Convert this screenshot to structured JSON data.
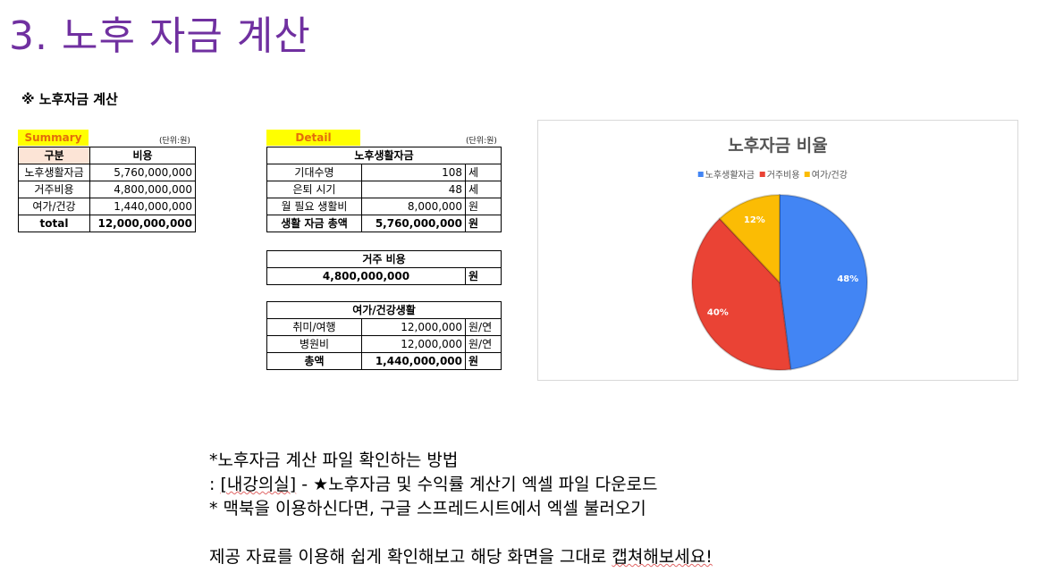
{
  "slide": {
    "title": "3. 노후 자금 계산",
    "section_heading": "※ 노후자금 계산"
  },
  "summary": {
    "tag": "Summary",
    "unit": "(단위:원)",
    "headers": [
      "구분",
      "비용"
    ],
    "rows": [
      {
        "label": "노후생활자금",
        "value": "5,760,000,000"
      },
      {
        "label": "거주비용",
        "value": "4,800,000,000"
      },
      {
        "label": "여가/건강",
        "value": "1,440,000,000"
      }
    ],
    "total": {
      "label": "total",
      "value": "12,000,000,000"
    }
  },
  "detail": {
    "tag": "Detail",
    "unit": "(단위:원)",
    "living": {
      "header": "노후생활자금",
      "rows": [
        {
          "label": "기대수명",
          "value": "108",
          "unit": "세"
        },
        {
          "label": "은퇴 시기",
          "value": "48",
          "unit": "세"
        },
        {
          "label": "월 필요 생활비",
          "value": "8,000,000",
          "unit": "원"
        }
      ],
      "total": {
        "label": "생활 자금 총액",
        "value": "5,760,000,000",
        "unit": "원"
      }
    },
    "housing": {
      "header": "거주 비용",
      "value": "4,800,000,000",
      "unit": "원"
    },
    "leisure": {
      "header": "여가/건강생활",
      "rows": [
        {
          "label": "취미/여행",
          "value": "12,000,000",
          "unit": "원/연"
        },
        {
          "label": "병원비",
          "value": "12,000,000",
          "unit": "원/연"
        }
      ],
      "total": {
        "label": "총액",
        "value": "1,440,000,000",
        "unit": "원"
      }
    }
  },
  "chart_data": {
    "type": "pie",
    "title": "노후자금 비율",
    "legend_position": "top",
    "categories": [
      "노후생활자금",
      "거주비용",
      "여가/건강"
    ],
    "values": [
      48,
      40,
      12
    ],
    "labels": [
      "48%",
      "40%",
      "12%"
    ],
    "colors": [
      "#4285f4",
      "#ea4335",
      "#fbbc04"
    ]
  },
  "notes": {
    "line1": "*노후자금 계산 파일 확인하는 방법",
    "line2_prefix": ": ",
    "line2_link": "[내강의실]",
    "line2_rest": " - ★노후자금 및 수익률 계산기 엑셀 파일 다운로드",
    "line3": "* 맥북을 이용하신다면, 구글 스프레드시트에서 엑셀 불러오기",
    "line4_main": "제공 자료를 이용해 쉽게 확인해보고 해당 화면을 그대로 ",
    "line4_tail": "캡쳐해보세요!"
  }
}
